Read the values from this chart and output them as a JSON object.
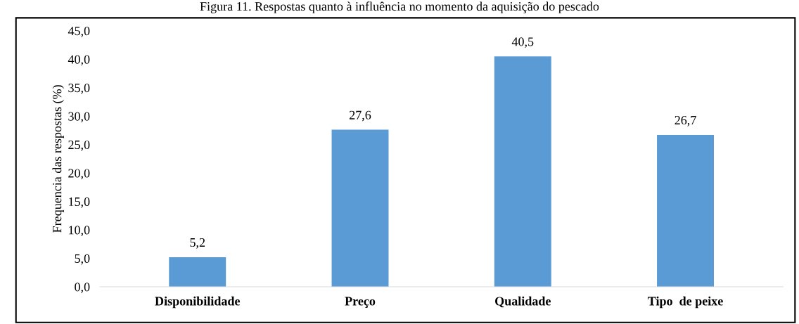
{
  "chart_data": {
    "type": "bar",
    "title": "Figura 11. Respostas quanto à influência no momento da aquisição do pescado",
    "ylabel": "Frequencia das respostas (%)",
    "categories": [
      "Disponibilidade",
      "Preço",
      "Qualidade",
      "Tipo  de peixe"
    ],
    "values": [
      5.2,
      27.6,
      40.5,
      26.7
    ],
    "color": "#5b9bd5",
    "value_labels": [
      "5,2",
      "27,6",
      "40,5",
      "26,7"
    ],
    "ylim": [
      0,
      45
    ],
    "yticks": [
      {
        "value": 0,
        "label": "0,0"
      },
      {
        "value": 5,
        "label": "5,0"
      },
      {
        "value": 10,
        "label": "10,0"
      },
      {
        "value": 15,
        "label": "15,0"
      },
      {
        "value": 20,
        "label": "20,0"
      },
      {
        "value": 25,
        "label": "25,0"
      },
      {
        "value": 30,
        "label": "30,0"
      },
      {
        "value": 35,
        "label": "35,0"
      },
      {
        "value": 40,
        "label": "40,0"
      },
      {
        "value": 45,
        "label": "45,0"
      }
    ],
    "grid": false
  }
}
